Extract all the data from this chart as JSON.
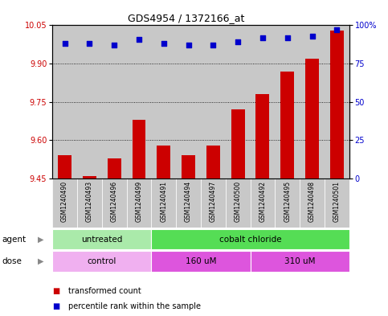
{
  "title": "GDS4954 / 1372166_at",
  "samples": [
    "GSM1240490",
    "GSM1240493",
    "GSM1240496",
    "GSM1240499",
    "GSM1240491",
    "GSM1240494",
    "GSM1240497",
    "GSM1240500",
    "GSM1240492",
    "GSM1240495",
    "GSM1240498",
    "GSM1240501"
  ],
  "bar_values": [
    9.54,
    9.46,
    9.53,
    9.68,
    9.58,
    9.54,
    9.58,
    9.72,
    9.78,
    9.87,
    9.92,
    10.03
  ],
  "dot_values": [
    88,
    88,
    87,
    91,
    88,
    87,
    87,
    89,
    92,
    92,
    93,
    97
  ],
  "bar_baseline": 9.45,
  "ylim_left": [
    9.45,
    10.05
  ],
  "ylim_right": [
    0,
    100
  ],
  "yticks_left": [
    9.45,
    9.6,
    9.75,
    9.9,
    10.05
  ],
  "yticks_right": [
    0,
    25,
    50,
    75,
    100
  ],
  "ytick_labels_right": [
    "0",
    "25",
    "50",
    "75",
    "100%"
  ],
  "bar_color": "#cc0000",
  "dot_color": "#0000cc",
  "agent_groups": [
    {
      "label": "untreated",
      "start": 0,
      "end": 4,
      "color": "#aaeaaa"
    },
    {
      "label": "cobalt chloride",
      "start": 4,
      "end": 12,
      "color": "#55dd55"
    }
  ],
  "dose_groups": [
    {
      "label": "control",
      "start": 0,
      "end": 4,
      "color": "#f0b0f0"
    },
    {
      "label": "160 uM",
      "start": 4,
      "end": 8,
      "color": "#dd55dd"
    },
    {
      "label": "310 uM",
      "start": 8,
      "end": 12,
      "color": "#dd55dd"
    }
  ],
  "legend_bar_label": "transformed count",
  "legend_dot_label": "percentile rank within the sample",
  "agent_label": "agent",
  "dose_label": "dose",
  "tick_bg_color": "#c8c8c8",
  "plot_bg": "#ffffff",
  "fig_bg": "#ffffff"
}
